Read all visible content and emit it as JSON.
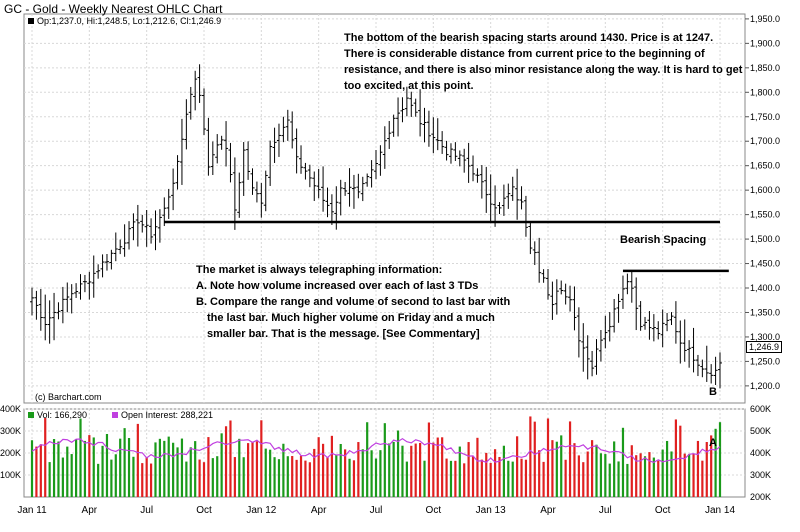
{
  "title": "GC - Gold - Weekly Nearest OHLC Chart",
  "legend": {
    "ohlc": "Op:1,237.0, Hi:1,248.5, Lo:1,212.6, Cl:1,246.9",
    "vol": "Vol: 166,290",
    "oi": "Open Interest: 288,221"
  },
  "copyright": "(c) Barchart.com",
  "last_price_label": "1,246.9",
  "annotations": {
    "top": "The bottom of the bearish spacing starts around 1430.  Price is at 1247.  There is considerable distance from current price to the beginning of resistance, and there is also minor resistance along the way.  It is hard to get too excited, at this point.",
    "middle_title": "The market is always telegraphing information:",
    "middle_a": "A.  Note how volume increased over each of last 3 TDs",
    "middle_b1": "B.  Compare the range and volume of second to last bar with",
    "middle_b2": "the last bar.  Much higher volume on Friday and a much",
    "middle_b3": "smaller bar.  That is the message.  [See Commentary]",
    "bearish_spacing": "Bearish Spacing",
    "label_b": "B",
    "label_a": "A"
  },
  "chart_data": [
    {
      "type": "ohlc",
      "title": "GC - Gold - Weekly Nearest OHLC Chart",
      "x_tick_labels": [
        "Jan 11",
        "Apr",
        "Jul",
        "Oct",
        "Jan 12",
        "Apr",
        "Jul",
        "Oct",
        "Jan 13",
        "Apr",
        "Jul",
        "Oct",
        "Jan 14"
      ],
      "y_tick_labels": [
        "1,200.0",
        "1,250.0",
        "1,300.0",
        "1,350.0",
        "1,400.0",
        "1,450.0",
        "1,500.0",
        "1,550.0",
        "1,600.0",
        "1,650.0",
        "1,700.0",
        "1,750.0",
        "1,800.0",
        "1,850.0",
        "1,900.0",
        "1,950.0"
      ],
      "ylim": [
        1165,
        1960
      ],
      "close_anchors": [
        [
          0,
          1380
        ],
        [
          3,
          1330
        ],
        [
          6,
          1360
        ],
        [
          9,
          1390
        ],
        [
          12,
          1410
        ],
        [
          15,
          1440
        ],
        [
          18,
          1470
        ],
        [
          21,
          1500
        ],
        [
          24,
          1540
        ],
        [
          27,
          1510
        ],
        [
          30,
          1560
        ],
        [
          33,
          1650
        ],
        [
          35,
          1760
        ],
        [
          37,
          1830
        ],
        [
          38,
          1800
        ],
        [
          39,
          1720
        ],
        [
          40,
          1650
        ],
        [
          42,
          1700
        ],
        [
          44,
          1690
        ],
        [
          46,
          1560
        ],
        [
          48,
          1680
        ],
        [
          50,
          1600
        ],
        [
          52,
          1580
        ],
        [
          54,
          1690
        ],
        [
          56,
          1720
        ],
        [
          58,
          1740
        ],
        [
          60,
          1660
        ],
        [
          62,
          1640
        ],
        [
          64,
          1610
        ],
        [
          66,
          1580
        ],
        [
          68,
          1560
        ],
        [
          70,
          1600
        ],
        [
          72,
          1610
        ],
        [
          74,
          1590
        ],
        [
          76,
          1620
        ],
        [
          78,
          1650
        ],
        [
          80,
          1700
        ],
        [
          82,
          1750
        ],
        [
          84,
          1770
        ],
        [
          85,
          1790
        ],
        [
          86,
          1770
        ],
        [
          88,
          1740
        ],
        [
          90,
          1720
        ],
        [
          92,
          1700
        ],
        [
          94,
          1680
        ],
        [
          96,
          1670
        ],
        [
          98,
          1660
        ],
        [
          100,
          1640
        ],
        [
          102,
          1610
        ],
        [
          104,
          1580
        ],
        [
          106,
          1560
        ],
        [
          107,
          1580
        ],
        [
          109,
          1600
        ],
        [
          111,
          1570
        ],
        [
          113,
          1490
        ],
        [
          114,
          1480
        ],
        [
          115,
          1440
        ],
        [
          116,
          1420
        ],
        [
          117,
          1380
        ],
        [
          118,
          1360
        ],
        [
          119,
          1400
        ],
        [
          121,
          1390
        ],
        [
          122,
          1380
        ],
        [
          124,
          1300
        ],
        [
          126,
          1260
        ],
        [
          127,
          1240
        ],
        [
          129,
          1300
        ],
        [
          131,
          1330
        ],
        [
          133,
          1380
        ],
        [
          135,
          1420
        ],
        [
          136,
          1400
        ],
        [
          137,
          1360
        ],
        [
          138,
          1330
        ],
        [
          140,
          1320
        ],
        [
          142,
          1310
        ],
        [
          143,
          1320
        ],
        [
          145,
          1340
        ],
        [
          147,
          1290
        ],
        [
          149,
          1270
        ],
        [
          151,
          1250
        ],
        [
          153,
          1230
        ],
        [
          155,
          1230
        ],
        [
          156,
          1247
        ]
      ],
      "horizontal_lines": [
        {
          "y": 1535,
          "x_from": 30,
          "x_to": 156
        },
        {
          "y": 1435,
          "x_from": 134,
          "x_to": 158
        }
      ]
    },
    {
      "type": "bar",
      "title": "Vol / Open Interest",
      "series": [
        {
          "name": "Vol: 166,290",
          "values_shape": "weekly volume bars 100K-400K"
        },
        {
          "name": "Open Interest: 288,221",
          "values_shape": "line 350K-500K"
        }
      ],
      "y_left_tick_labels": [
        "100K",
        "200K",
        "300K",
        "400K"
      ],
      "y_right_tick_labels": [
        "200K",
        "300K",
        "400K",
        "500K",
        "600K"
      ],
      "y_left_range": [
        0,
        400000
      ],
      "y_right_range": [
        200000,
        600000
      ]
    }
  ]
}
